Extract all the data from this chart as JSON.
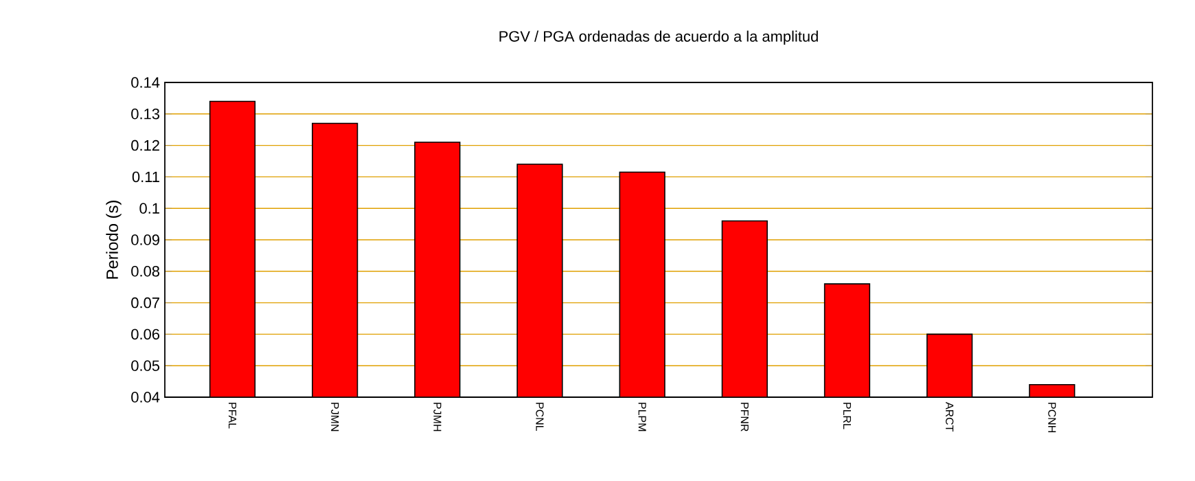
{
  "chart_data": {
    "type": "bar",
    "title": "PGV / PGA ordenadas de acuerdo a la amplitud",
    "ylabel": "Periodo (s)",
    "categories": [
      "PFAL",
      "PJMN",
      "PJMH",
      "PCNL",
      "PLPM",
      "PFNR",
      "PLRL",
      "ARCT",
      "PCNH"
    ],
    "values": [
      0.134,
      0.127,
      0.121,
      0.114,
      0.1115,
      0.096,
      0.076,
      0.06,
      0.044
    ],
    "color": "#ff0000",
    "ylim": [
      0.04,
      0.14
    ],
    "yticks": [
      0.04,
      0.05,
      0.06,
      0.07,
      0.08,
      0.09,
      0.1,
      0.11,
      0.12,
      0.13,
      0.14
    ],
    "grid": "y"
  }
}
